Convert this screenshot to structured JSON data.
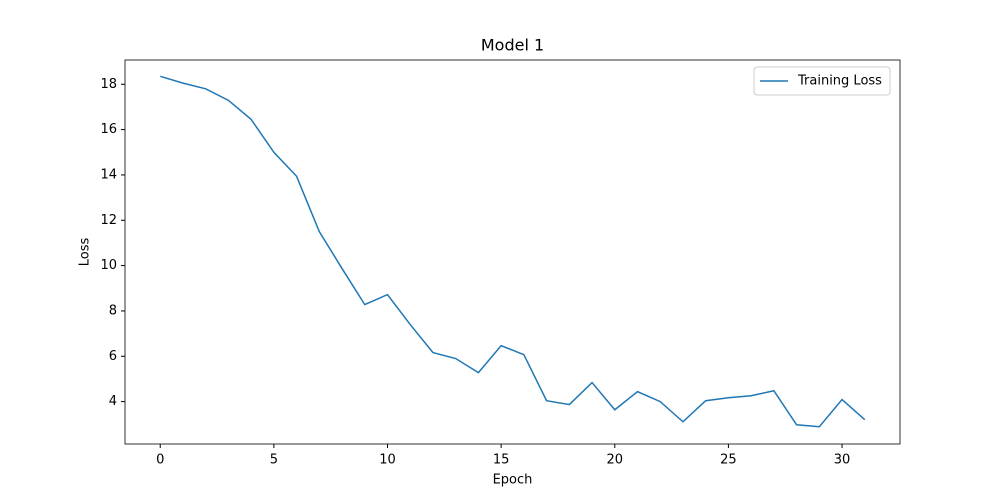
{
  "chart_data": {
    "type": "line",
    "title": "Model 1",
    "x_label": "Epoch",
    "y_label": "Loss",
    "x": [
      0,
      1,
      2,
      3,
      4,
      5,
      6,
      7,
      8,
      9,
      10,
      11,
      12,
      13,
      14,
      15,
      16,
      17,
      18,
      19,
      20,
      21,
      22,
      23,
      24,
      25,
      26,
      27,
      28,
      29,
      30,
      31
    ],
    "series": [
      {
        "name": "Training Loss",
        "color": "#1f77b4",
        "values": [
          18.35,
          18.05,
          17.8,
          17.29,
          16.45,
          15.0,
          13.94,
          11.5,
          9.87,
          8.28,
          8.72,
          7.4,
          6.16,
          5.9,
          5.28,
          6.47,
          6.07,
          4.04,
          3.87,
          4.84,
          3.64,
          4.44,
          4.0,
          3.11,
          4.04,
          4.17,
          4.26,
          4.48,
          2.98,
          2.89,
          4.09,
          3.2
        ]
      }
    ],
    "xlim": [
      -1.55,
      32.55
    ],
    "xticks": [
      0,
      5,
      10,
      15,
      20,
      25,
      30
    ],
    "ylim": [
      2.13,
      19.07
    ],
    "yticks": [
      4,
      6,
      8,
      10,
      12,
      14,
      16,
      18
    ],
    "legend": "upper right",
    "grid": false
  }
}
